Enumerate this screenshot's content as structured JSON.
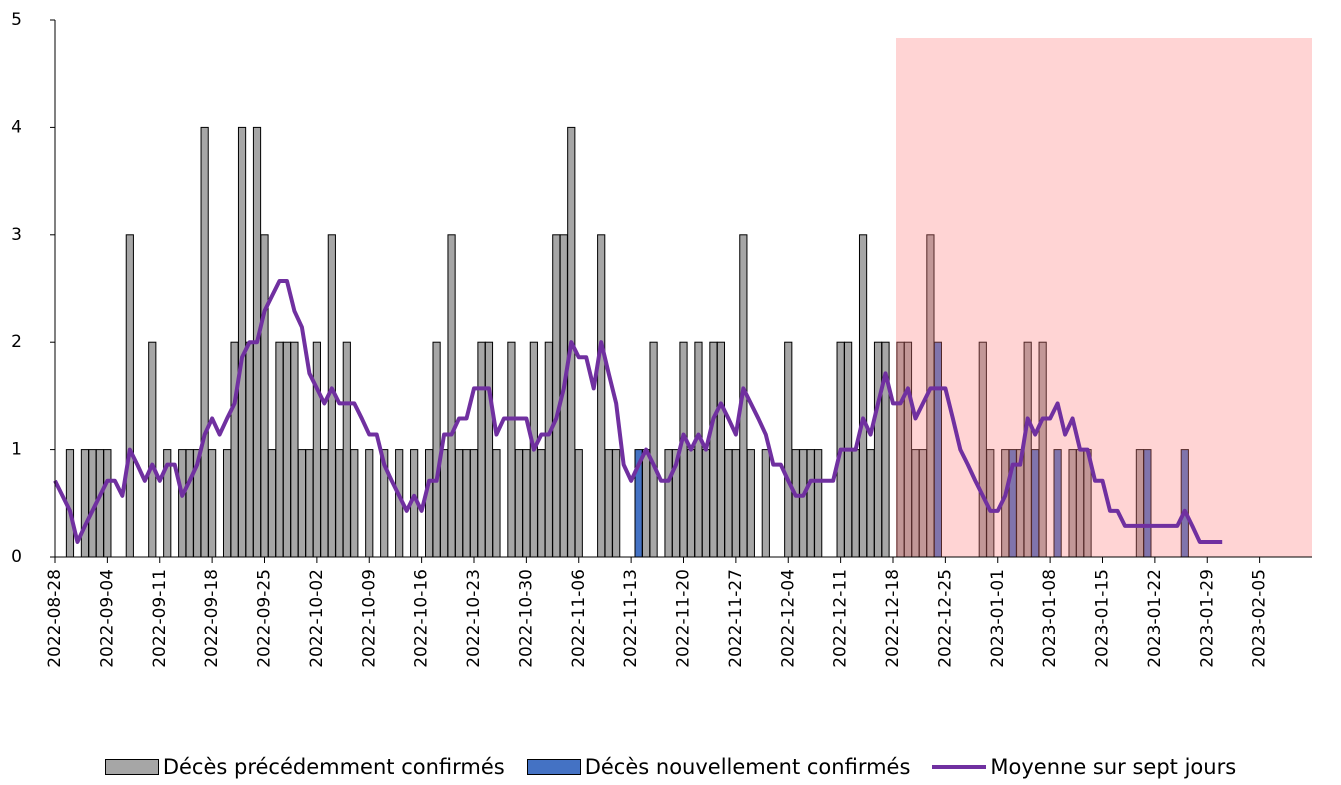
{
  "chart_data": {
    "type": "bar",
    "categories": [
      "2022-08-28",
      null,
      null,
      null,
      null,
      null,
      null,
      "2022-09-04",
      null,
      null,
      null,
      null,
      null,
      null,
      "2022-09-11",
      null,
      null,
      null,
      null,
      null,
      null,
      "2022-09-18",
      null,
      null,
      null,
      null,
      null,
      null,
      "2022-09-25",
      null,
      null,
      null,
      null,
      null,
      null,
      "2022-10-02",
      null,
      null,
      null,
      null,
      null,
      null,
      "2022-10-09",
      null,
      null,
      null,
      null,
      null,
      null,
      "2022-10-16",
      null,
      null,
      null,
      null,
      null,
      null,
      "2022-10-23",
      null,
      null,
      null,
      null,
      null,
      null,
      "2022-10-30",
      null,
      null,
      null,
      null,
      null,
      null,
      "2022-11-06",
      null,
      null,
      null,
      null,
      null,
      null,
      "2022-11-13",
      null,
      null,
      null,
      null,
      null,
      null,
      "2022-11-20",
      null,
      null,
      null,
      null,
      null,
      null,
      "2022-11-27",
      null,
      null,
      null,
      null,
      null,
      null,
      "2022-12-04",
      null,
      null,
      null,
      null,
      null,
      null,
      "2022-12-11",
      null,
      null,
      null,
      null,
      null,
      null,
      "2022-12-18",
      null,
      null,
      null,
      null,
      null,
      null,
      "2022-12-25",
      null,
      null,
      null,
      null,
      null,
      null,
      "2023-01-01",
      null,
      null,
      null,
      null,
      null,
      null,
      "2023-01-08",
      null,
      null,
      null,
      null,
      null,
      null,
      "2023-01-15",
      null,
      null,
      null,
      null,
      null,
      null,
      "2023-01-22",
      null,
      null,
      null,
      null,
      null,
      null,
      "2023-01-29",
      null,
      null,
      null,
      null,
      null,
      null,
      "2023-02-05",
      null,
      null,
      null,
      null,
      null,
      null
    ],
    "series": [
      {
        "name": "Décès précédemment confirmés",
        "type": "bar",
        "color": "#a6a6a6",
        "values": [
          0,
          0,
          1,
          0,
          1,
          1,
          1,
          1,
          0,
          0,
          3,
          0,
          0,
          2,
          0,
          1,
          0,
          1,
          1,
          1,
          4,
          1,
          0,
          1,
          2,
          4,
          2,
          4,
          3,
          1,
          2,
          2,
          2,
          1,
          1,
          2,
          1,
          3,
          1,
          2,
          1,
          0,
          1,
          0,
          1,
          0,
          1,
          0,
          1,
          0,
          1,
          2,
          1,
          3,
          1,
          1,
          1,
          2,
          2,
          1,
          0,
          2,
          1,
          1,
          2,
          1,
          2,
          3,
          3,
          4,
          1,
          0,
          0,
          3,
          1,
          1,
          0,
          0,
          0,
          1,
          2,
          0,
          1,
          1,
          2,
          1,
          2,
          1,
          2,
          2,
          1,
          1,
          3,
          1,
          0,
          1,
          0,
          0,
          2,
          1,
          1,
          1,
          1,
          0,
          0,
          2,
          2,
          1,
          3,
          1,
          2,
          2,
          0,
          2,
          2,
          1,
          1,
          3,
          0,
          0,
          0,
          0,
          0,
          0,
          2,
          1,
          0,
          1,
          0,
          1,
          2,
          0,
          2,
          0,
          0,
          0,
          1,
          1,
          1,
          0,
          0,
          0,
          0,
          0,
          0,
          1,
          0,
          0,
          0,
          0,
          0,
          0,
          0,
          0,
          0,
          0,
          0,
          null,
          null,
          null,
          null,
          null,
          null,
          null,
          null,
          null,
          null,
          null
        ]
      },
      {
        "name": "Décès nouvellement confirmés",
        "type": "bar",
        "color": "#4472c4",
        "values": [
          0,
          0,
          0,
          0,
          0,
          0,
          0,
          0,
          0,
          0,
          0,
          0,
          0,
          0,
          0,
          0,
          0,
          0,
          0,
          0,
          0,
          0,
          0,
          0,
          0,
          0,
          0,
          0,
          0,
          0,
          0,
          0,
          0,
          0,
          0,
          0,
          0,
          0,
          0,
          0,
          0,
          0,
          0,
          0,
          0,
          0,
          0,
          0,
          0,
          0,
          0,
          0,
          0,
          0,
          0,
          0,
          0,
          0,
          0,
          0,
          0,
          0,
          0,
          0,
          0,
          0,
          0,
          0,
          0,
          0,
          0,
          0,
          0,
          0,
          0,
          0,
          0,
          0,
          1,
          0,
          0,
          0,
          0,
          0,
          0,
          0,
          0,
          0,
          0,
          0,
          0,
          0,
          0,
          0,
          0,
          0,
          0,
          0,
          0,
          0,
          0,
          0,
          0,
          0,
          0,
          0,
          0,
          0,
          0,
          0,
          0,
          0,
          0,
          0,
          0,
          0,
          0,
          0,
          2,
          0,
          0,
          0,
          0,
          0,
          0,
          0,
          0,
          0,
          1,
          0,
          0,
          1,
          0,
          0,
          1,
          0,
          0,
          0,
          0,
          0,
          0,
          0,
          0,
          0,
          0,
          0,
          1,
          0,
          0,
          0,
          0,
          1,
          0,
          0,
          0,
          0,
          0,
          null,
          null,
          null,
          null,
          null,
          null,
          null,
          null,
          null,
          null,
          null
        ]
      },
      {
        "name": "Moyenne sur sept jours",
        "type": "line",
        "color": "#7030a0",
        "values": [
          0.71,
          0.57,
          0.43,
          0.14,
          0.29,
          0.43,
          0.57,
          0.71,
          0.71,
          0.57,
          1.0,
          0.86,
          0.71,
          0.86,
          0.71,
          0.86,
          0.86,
          0.57,
          0.71,
          0.86,
          1.14,
          1.29,
          1.14,
          1.29,
          1.43,
          1.86,
          2.0,
          2.0,
          2.29,
          2.43,
          2.57,
          2.57,
          2.29,
          2.14,
          1.71,
          1.57,
          1.43,
          1.57,
          1.43,
          1.43,
          1.43,
          1.29,
          1.14,
          1.14,
          0.86,
          0.71,
          0.57,
          0.43,
          0.57,
          0.43,
          0.71,
          0.71,
          1.14,
          1.14,
          1.29,
          1.29,
          1.57,
          1.57,
          1.57,
          1.14,
          1.29,
          1.29,
          1.29,
          1.29,
          1.0,
          1.14,
          1.14,
          1.29,
          1.57,
          2.0,
          1.86,
          1.86,
          1.57,
          2.0,
          1.71,
          1.43,
          0.86,
          0.71,
          0.86,
          1.0,
          0.86,
          0.71,
          0.71,
          0.86,
          1.14,
          1.0,
          1.14,
          1.0,
          1.29,
          1.43,
          1.29,
          1.14,
          1.57,
          1.43,
          1.29,
          1.14,
          0.86,
          0.86,
          0.71,
          0.57,
          0.57,
          0.71,
          0.71,
          0.71,
          0.71,
          1.0,
          1.0,
          1.0,
          1.29,
          1.14,
          1.43,
          1.71,
          1.43,
          1.43,
          1.57,
          1.29,
          1.43,
          1.57,
          1.57,
          1.57,
          1.29,
          1.0,
          0.86,
          0.71,
          0.57,
          0.43,
          0.43,
          0.57,
          0.86,
          0.86,
          1.29,
          1.14,
          1.29,
          1.29,
          1.43,
          1.14,
          1.29,
          1.0,
          1.0,
          0.71,
          0.71,
          0.43,
          0.43,
          0.29,
          0.29,
          0.29,
          0.29,
          0.29,
          0.29,
          0.29,
          0.29,
          0.43,
          0.29,
          0.14,
          0.14,
          0.14,
          0.14,
          null,
          null,
          null,
          null,
          null,
          null,
          null,
          null,
          null,
          null,
          null
        ]
      }
    ],
    "ylim": [
      0,
      5
    ],
    "yticks": [
      0,
      1,
      2,
      3,
      4,
      5
    ],
    "grid": false,
    "legend": "bottom"
  }
}
